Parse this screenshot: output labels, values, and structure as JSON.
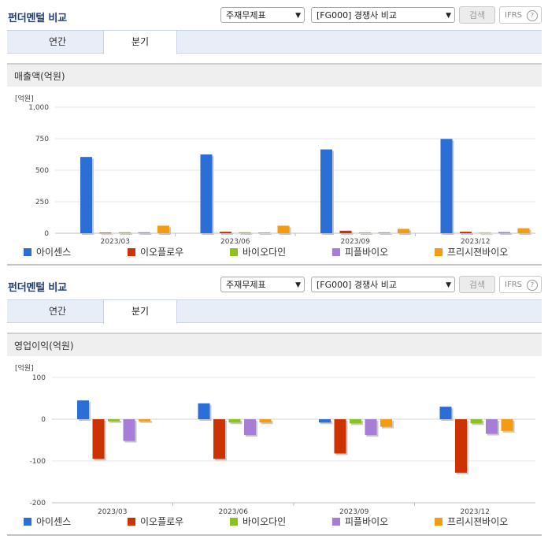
{
  "panels": [
    {
      "title": "펀더멘털 비교",
      "select1": "주재무제표",
      "select2": "[FG000] 경쟁사 비교",
      "search_label": "검색",
      "ifrs_label": "IFRS",
      "ifrs_help": "?",
      "tabs": [
        "연간",
        "분기"
      ],
      "active_tab": "분기",
      "metric": "매출액(억원)",
      "unit": "[억원]"
    },
    {
      "title": "펀더멘털 비교",
      "select1": "주재무제표",
      "select2": "[FG000] 경쟁사 비교",
      "search_label": "검색",
      "ifrs_label": "IFRS",
      "ifrs_help": "?",
      "tabs": [
        "연간",
        "분기"
      ],
      "active_tab": "분기",
      "metric": "영업이익(억원)",
      "unit": "[억원]"
    }
  ],
  "legend": [
    {
      "name": "아이센스",
      "color": "#2a6ed6"
    },
    {
      "name": "이오플로우",
      "color": "#cc3300"
    },
    {
      "name": "바이오다인",
      "color": "#8cc21e"
    },
    {
      "name": "피플바이오",
      "color": "#a77ed6"
    },
    {
      "name": "프리시젼바이오",
      "color": "#f39c12"
    }
  ],
  "chart_data": [
    {
      "type": "bar",
      "title": "매출액(억원)",
      "ylabel": "[억원]",
      "categories": [
        "2023/03",
        "2023/06",
        "2023/09",
        "2023/12"
      ],
      "ylim": [
        0,
        1000
      ],
      "yticks": [
        0,
        250,
        500,
        750,
        1000
      ],
      "ytick_labels": [
        "0",
        "250",
        "500",
        "750",
        "1,000"
      ],
      "grid": true,
      "legend_position": "bottom",
      "series": [
        {
          "name": "아이센스",
          "values": [
            605,
            625,
            665,
            748
          ]
        },
        {
          "name": "이오플로우",
          "values": [
            5,
            12,
            20,
            12
          ]
        },
        {
          "name": "바이오다인",
          "values": [
            8,
            8,
            7,
            5
          ]
        },
        {
          "name": "피플바이오",
          "values": [
            8,
            6,
            7,
            10
          ]
        },
        {
          "name": "프리시젼바이오",
          "values": [
            60,
            60,
            35,
            40
          ]
        }
      ]
    },
    {
      "type": "bar",
      "title": "영업이익(억원)",
      "ylabel": "[억원]",
      "categories": [
        "2023/03",
        "2023/06",
        "2023/09",
        "2023/12"
      ],
      "ylim": [
        -200,
        100
      ],
      "yticks": [
        -200,
        -100,
        0,
        100
      ],
      "ytick_labels": [
        "-200",
        "-100",
        "0",
        "100"
      ],
      "grid": true,
      "legend_position": "bottom",
      "series": [
        {
          "name": "아이센스",
          "values": [
            45,
            38,
            -8,
            30
          ]
        },
        {
          "name": "이오플로우",
          "values": [
            -95,
            -95,
            -82,
            -128
          ]
        },
        {
          "name": "바이오다인",
          "values": [
            -5,
            -8,
            -10,
            -10
          ]
        },
        {
          "name": "피플바이오",
          "values": [
            -52,
            -38,
            -38,
            -35
          ]
        },
        {
          "name": "프리시젼바이오",
          "values": [
            -5,
            -8,
            -18,
            -28
          ]
        }
      ]
    }
  ]
}
